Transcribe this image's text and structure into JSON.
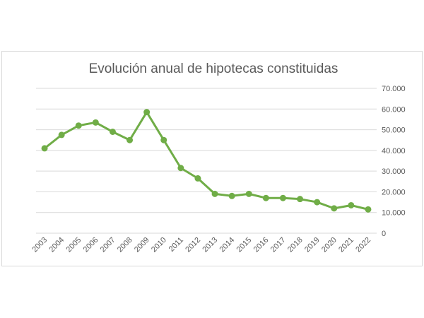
{
  "chart_data": {
    "type": "line",
    "title": "Evolución anual de hipotecas constituidas",
    "xlabel": "",
    "ylabel": "",
    "ylim": [
      0,
      70000
    ],
    "y_ticks": [
      "0",
      "10.000",
      "20.000",
      "30.000",
      "40.000",
      "50.000",
      "60.000",
      "70.000"
    ],
    "y_axis_position": "right",
    "grid": true,
    "legend": "none",
    "categories": [
      "2003",
      "2004",
      "2005",
      "2006",
      "2007",
      "2008",
      "2009",
      "2010",
      "2011",
      "2012",
      "2013",
      "2014",
      "2015",
      "2016",
      "2017",
      "2018",
      "2019",
      "2020",
      "2021",
      "2022"
    ],
    "series": [
      {
        "color": "#70ad47",
        "values": [
          41000,
          47500,
          52000,
          53500,
          49000,
          45000,
          58500,
          45000,
          31500,
          26500,
          19000,
          18000,
          19000,
          17000,
          17000,
          16500,
          15000,
          12000,
          13500,
          11500
        ]
      }
    ]
  }
}
